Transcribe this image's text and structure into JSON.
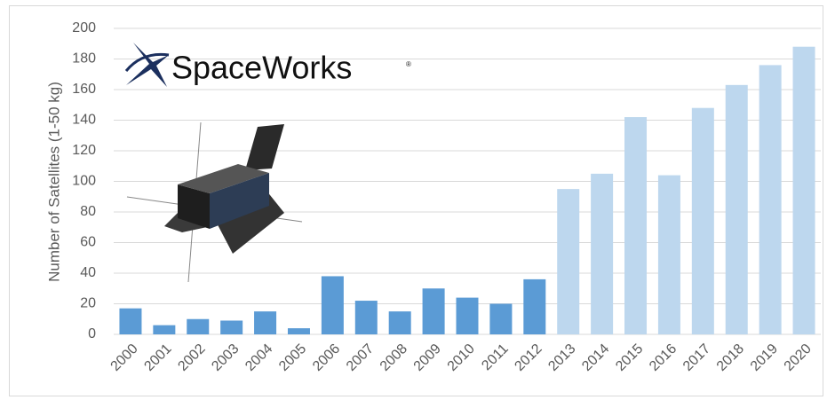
{
  "chart_data": {
    "type": "bar",
    "y_label": "Number of Satellites (1-50 kg)",
    "logo": {
      "text": "SpaceWorks",
      "mark": "®"
    },
    "categories": [
      "2000",
      "2001",
      "2002",
      "2003",
      "2004",
      "2005",
      "2006",
      "2007",
      "2008",
      "2009",
      "2010",
      "2011",
      "2012",
      "2013",
      "2014",
      "2015",
      "2016",
      "2017",
      "2018",
      "2019",
      "2020"
    ],
    "values": [
      17,
      6,
      10,
      9,
      15,
      4,
      38,
      22,
      15,
      30,
      24,
      20,
      36,
      95,
      105,
      142,
      104,
      148,
      163,
      176,
      188
    ],
    "colors": [
      "#5b9bd5",
      "#5b9bd5",
      "#5b9bd5",
      "#5b9bd5",
      "#5b9bd5",
      "#5b9bd5",
      "#5b9bd5",
      "#5b9bd5",
      "#5b9bd5",
      "#5b9bd5",
      "#5b9bd5",
      "#5b9bd5",
      "#5b9bd5",
      "#bdd7ee",
      "#bdd7ee",
      "#bdd7ee",
      "#bdd7ee",
      "#bdd7ee",
      "#bdd7ee",
      "#bdd7ee",
      "#bdd7ee"
    ],
    "ylim": [
      0,
      200
    ],
    "yticks": [
      0,
      20,
      40,
      60,
      80,
      100,
      120,
      140,
      160,
      180,
      200
    ],
    "grid": true
  }
}
